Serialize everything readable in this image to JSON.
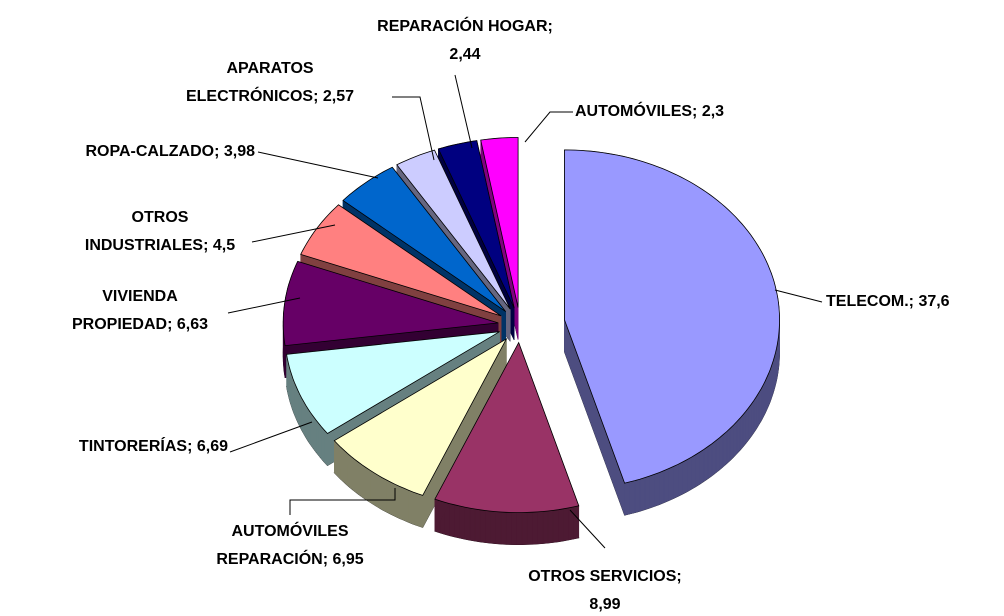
{
  "chart_data": {
    "type": "pie",
    "values": [
      37.6,
      8.99,
      6.95,
      6.69,
      6.63,
      4.5,
      3.98,
      2.57,
      2.44,
      2.3
    ],
    "value_labels": [
      [
        "TELECOM.; 37,6"
      ],
      [
        "OTROS SERVICIOS;",
        "8,99"
      ],
      [
        "AUTOMÓVILES",
        "REPARACIÓN; 6,95"
      ],
      [
        "TINTORERÍAS; 6,69"
      ],
      [
        "VIVIENDA",
        "PROPIEDAD; 6,63"
      ],
      [
        "OTROS",
        "INDUSTRIALES; 4,5"
      ],
      [
        "ROPA-CALZADO; 3,98"
      ],
      [
        "APARATOS",
        "ELECTRÓNICOS; 2,57"
      ],
      [
        "REPARACIÓN HOGAR;",
        "2,44"
      ],
      [
        "AUTOMÓVILES; 2,3"
      ]
    ],
    "colors": [
      "#9999ff",
      "#993366",
      "#ffffcc",
      "#ccffff",
      "#660066",
      "#ff8080",
      "#0066cc",
      "#ccccff",
      "#000080",
      "#ff00ff"
    ]
  }
}
